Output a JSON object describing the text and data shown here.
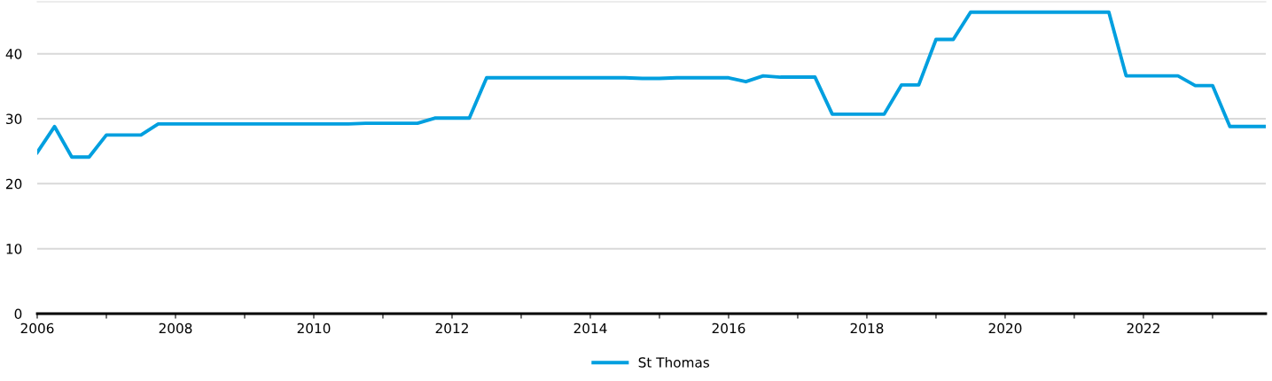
{
  "chart_data": {
    "type": "line",
    "x": [
      2006,
      2006.25,
      2006.5,
      2006.75,
      2007,
      2007.25,
      2007.5,
      2007.75,
      2008,
      2008.25,
      2008.5,
      2008.75,
      2009,
      2009.25,
      2009.5,
      2009.75,
      2010,
      2010.25,
      2010.5,
      2010.75,
      2011,
      2011.25,
      2011.5,
      2011.75,
      2012,
      2012.25,
      2012.5,
      2012.75,
      2013,
      2013.25,
      2013.5,
      2013.75,
      2014,
      2014.25,
      2014.5,
      2014.75,
      2015,
      2015.25,
      2015.5,
      2015.75,
      2016,
      2016.25,
      2016.5,
      2016.75,
      2017,
      2017.25,
      2017.5,
      2017.75,
      2018,
      2018.25,
      2018.5,
      2018.75,
      2019,
      2019.25,
      2019.5,
      2019.75,
      2020,
      2020.25,
      2020.5,
      2020.75,
      2021,
      2021.25,
      2021.5,
      2021.75,
      2022,
      2022.25,
      2022.5,
      2022.75,
      2023,
      2023.25,
      2023.5,
      2023.75
    ],
    "series": [
      {
        "name": "St Thomas",
        "color": "#009fdf",
        "values": [
          24.8,
          28.8,
          24.1,
          24.1,
          27.5,
          27.5,
          27.5,
          29.2,
          29.2,
          29.2,
          29.2,
          29.2,
          29.2,
          29.2,
          29.2,
          29.2,
          29.2,
          29.2,
          29.2,
          29.3,
          29.3,
          29.3,
          29.3,
          30.1,
          30.1,
          30.1,
          36.3,
          36.3,
          36.3,
          36.3,
          36.3,
          36.3,
          36.3,
          36.3,
          36.3,
          36.2,
          36.2,
          36.3,
          36.3,
          36.3,
          36.3,
          35.7,
          36.6,
          36.4,
          36.4,
          36.4,
          30.7,
          30.7,
          30.7,
          30.7,
          35.2,
          35.2,
          42.2,
          42.2,
          46.4,
          46.4,
          46.4,
          46.4,
          46.4,
          46.4,
          46.4,
          46.4,
          46.4,
          36.6,
          36.6,
          36.6,
          36.6,
          35.1,
          35.1,
          28.8,
          28.8,
          28.8
        ]
      }
    ],
    "xlim": [
      2006,
      2023.77
    ],
    "xticks": [
      2006,
      {
        "value": 2007,
        "label": null
      },
      2008,
      {
        "value": 2009,
        "label": null
      },
      2010,
      {
        "value": 2011,
        "label": null
      },
      2012,
      {
        "value": 2013,
        "label": null
      },
      2014,
      {
        "value": 2015,
        "label": null
      },
      2016,
      {
        "value": 2017,
        "label": null
      },
      2018,
      {
        "value": 2019,
        "label": null
      },
      2020,
      {
        "value": 2021,
        "label": null
      },
      2022,
      {
        "value": 2023,
        "label": null
      }
    ],
    "ylim": [
      0,
      48
    ],
    "yticks": [
      0,
      10,
      20,
      30,
      40
    ],
    "grid": "y",
    "legend": "bottom",
    "marker": "none",
    "line_style": "solid"
  }
}
